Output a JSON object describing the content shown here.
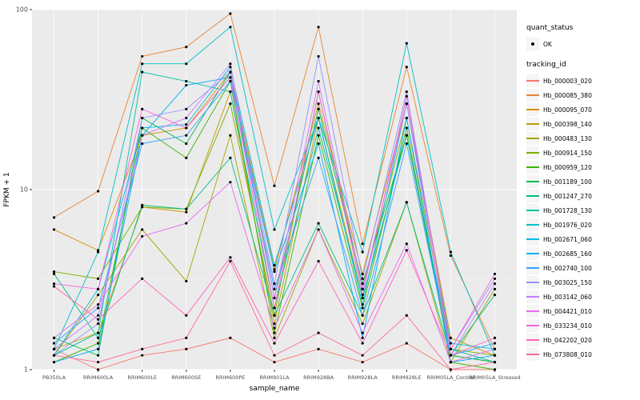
{
  "legend": {
    "quant_status_title": "quant_status",
    "quant_status_items": [
      "OK"
    ],
    "tracking_id_title": "tracking_id"
  },
  "panel": {
    "bg": "#EBEBEB",
    "grid_major": "#FFFFFF",
    "grid_minor": "#F6F6F6",
    "tick_label_color": "#4D4D4D",
    "point_color": "#000000"
  },
  "chart_data": {
    "type": "line",
    "title": "",
    "xlabel": "sample_name",
    "ylabel": "FPKM + 1",
    "y_scale": "log10",
    "ylim": [
      1,
      100
    ],
    "y_ticks": [
      1,
      10,
      100
    ],
    "y_minor": [
      3.1623,
      31.623
    ],
    "legend_position": "right",
    "grid": true,
    "categories": [
      "PB350LA",
      "RRIM600LA",
      "RRIM600LE",
      "RRIM600SE",
      "RRIM600PE",
      "RRIM901LA",
      "RRIM928BA",
      "RRIM928LA",
      "RRIM928LE",
      "RRIM05LA_Control",
      "RRIM05LA_Stressed"
    ],
    "series": [
      {
        "name": "Hb_000003_020",
        "color": "#F8766D",
        "values": [
          1.3,
          1.0,
          1.2,
          1.3,
          1.5,
          1.1,
          1.3,
          1.1,
          1.4,
          1.0,
          1.0
        ]
      },
      {
        "name": "Hb_000085_380",
        "color": "#EA8331",
        "values": [
          7.0,
          9.8,
          55,
          62,
          95,
          10.5,
          80,
          5.0,
          48,
          4.3,
          1.3
        ]
      },
      {
        "name": "Hb_000095_070",
        "color": "#D89000",
        "values": [
          6.0,
          4.6,
          20,
          22,
          45,
          3.6,
          30,
          3.4,
          30,
          1.5,
          1.2
        ]
      },
      {
        "name": "Hb_000398_140",
        "color": "#C09B00",
        "values": [
          1.3,
          1.6,
          8.0,
          7.5,
          35,
          1.8,
          25,
          2.5,
          20,
          1.2,
          1.1
        ]
      },
      {
        "name": "Hb_000483_130",
        "color": "#A3A500",
        "values": [
          1.2,
          2.6,
          6.0,
          3.1,
          20,
          1.5,
          6.0,
          1.8,
          8.5,
          1.1,
          2.8
        ]
      },
      {
        "name": "Hb_000914_150",
        "color": "#7CAE00",
        "values": [
          3.5,
          3.2,
          8.0,
          7.8,
          30,
          2.0,
          35,
          2.8,
          25,
          1.3,
          1.2
        ]
      },
      {
        "name": "Hb_000959_120",
        "color": "#39B600",
        "values": [
          1.1,
          1.4,
          22,
          15,
          40,
          1.6,
          20,
          2.2,
          22,
          1.1,
          1.0
        ]
      },
      {
        "name": "Hb_001189_100",
        "color": "#00BB4E",
        "values": [
          1.5,
          1.2,
          25,
          18,
          45,
          2.5,
          28,
          3.0,
          20,
          1.2,
          1.1
        ]
      },
      {
        "name": "Hb_001247_270",
        "color": "#00BF7D",
        "values": [
          3.4,
          1.5,
          8.2,
          7.8,
          15,
          2.0,
          6.5,
          2.0,
          8.5,
          1.2,
          2.6
        ]
      },
      {
        "name": "Hb_001728_130",
        "color": "#00C1A3",
        "values": [
          1.2,
          1.6,
          45,
          40,
          35,
          2.2,
          22,
          2.5,
          20,
          1.3,
          1.1
        ]
      },
      {
        "name": "Hb_001976_020",
        "color": "#00BFC4",
        "values": [
          1.3,
          4.5,
          50,
          50,
          80,
          6.0,
          25,
          4.5,
          65,
          4.5,
          1.2
        ]
      },
      {
        "name": "Hb_002671_060",
        "color": "#00BAE0",
        "values": [
          1.2,
          2.8,
          22,
          23,
          48,
          3.8,
          25,
          2.3,
          30,
          1.4,
          1.3
        ]
      },
      {
        "name": "Hb_002685_160",
        "color": "#00B0F6",
        "values": [
          1.1,
          1.3,
          20,
          38,
          42,
          3.5,
          18,
          1.5,
          25,
          1.1,
          1.2
        ]
      },
      {
        "name": "Hb_002740_100",
        "color": "#35A2FF",
        "values": [
          1.4,
          2.2,
          18,
          20,
          40,
          2.8,
          15,
          2.0,
          18,
          1.2,
          1.4
        ]
      },
      {
        "name": "Hb_003025_150",
        "color": "#9590FF",
        "values": [
          1.2,
          1.8,
          25,
          28,
          45,
          3.0,
          55,
          3.2,
          35,
          1.3,
          3.2
        ]
      },
      {
        "name": "Hb_003142_060",
        "color": "#C77CFF",
        "values": [
          1.3,
          2.0,
          20,
          25,
          50,
          2.5,
          40,
          2.8,
          30,
          1.2,
          3.0
        ]
      },
      {
        "name": "Hb_004421_010",
        "color": "#E76BF3",
        "values": [
          1.5,
          2.3,
          5.5,
          6.5,
          11,
          1.7,
          6.0,
          1.6,
          5.0,
          1.1,
          1.3
        ]
      },
      {
        "name": "Hb_033234_010",
        "color": "#FA62DB",
        "values": [
          3.0,
          2.8,
          28,
          22,
          42,
          2.2,
          35,
          2.6,
          33,
          1.3,
          3.4
        ]
      },
      {
        "name": "Hb_042202_020",
        "color": "#FF62BC",
        "values": [
          2.9,
          1.9,
          3.2,
          2.0,
          4.2,
          1.4,
          4.0,
          1.4,
          4.6,
          1.2,
          1.5
        ]
      },
      {
        "name": "Hb_073808_010",
        "color": "#FF6A98",
        "values": [
          1.2,
          1.1,
          1.3,
          1.5,
          4.0,
          1.2,
          1.6,
          1.2,
          2.0,
          1.0,
          1.1
        ]
      }
    ]
  }
}
